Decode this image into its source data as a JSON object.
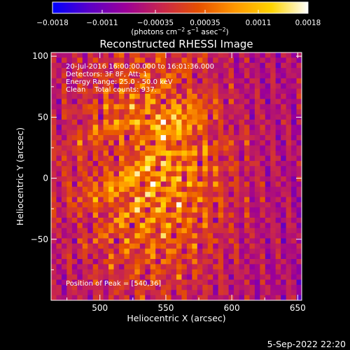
{
  "chart_data": {
    "type": "heatmap",
    "title": "Reconstructed RHESSI Image",
    "xlabel": "Heliocentric X (arcsec)",
    "ylabel": "Heliocentric Y (arcsec)",
    "xlim": [
      463,
      653
    ],
    "ylim": [
      -100,
      103
    ],
    "xticks": [
      500,
      550,
      600,
      650
    ],
    "yticks": [
      -50,
      0,
      50,
      100
    ],
    "x_ticklabels": [
      "500",
      "550",
      "600",
      "650"
    ],
    "y_ticklabels": [
      "−50",
      "0",
      "50",
      "100"
    ],
    "colorbar": {
      "ticks": [
        -0.0018,
        -0.0011,
        -0.00035,
        0.00035,
        0.0011,
        0.0018
      ],
      "ticklabels": [
        "−0.0018",
        "−0.0011",
        "−0.00035",
        "0.00035",
        "0.0011",
        "0.0018"
      ],
      "label_text": "(photons cm",
      "label_sup1": "−2",
      "label_mid": " s",
      "label_sup2": "−1",
      "label_mid2": " asec",
      "label_sup3": "−2",
      "label_end": ")",
      "colors": [
        "#0000ff",
        "#5a00c8",
        "#9b0098",
        "#c9264c",
        "#e65000",
        "#ff9800",
        "#ffd400",
        "#ffffff"
      ]
    },
    "annotations": {
      "line1": "20-Jul-2016 16:00:00.000 to 16:01:36.000",
      "line2": "Detectors: 3F 8F, Att: 1",
      "line3": "Energy Range: 25.0 - 50.0 keV",
      "line4": "Clean    Total counts: 937.",
      "peak": "Position of Peak = [540,36]"
    },
    "peak": [
      540,
      36
    ],
    "footer_date": "5-Sep-2022 22:20"
  }
}
